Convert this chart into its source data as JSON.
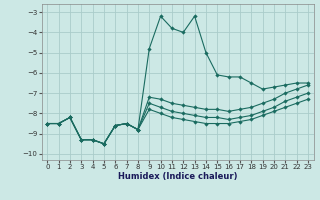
{
  "xlabel": "Humidex (Indice chaleur)",
  "background_color": "#cce8e5",
  "grid_color": "#aaccca",
  "line_color": "#1a6b60",
  "xlim": [
    -0.5,
    23.5
  ],
  "ylim": [
    -10.3,
    -2.6
  ],
  "xticks": [
    0,
    1,
    2,
    3,
    4,
    5,
    6,
    7,
    8,
    9,
    10,
    11,
    12,
    13,
    14,
    15,
    16,
    17,
    18,
    19,
    20,
    21,
    22,
    23
  ],
  "yticks": [
    -10,
    -9,
    -8,
    -7,
    -6,
    -5,
    -4,
    -3
  ],
  "series": [
    {
      "x": [
        0,
        1,
        2,
        3,
        4,
        5,
        6,
        7,
        8,
        9,
        10,
        11,
        12,
        13,
        14,
        15,
        16,
        17,
        18,
        19,
        20,
        21,
        22,
        23
      ],
      "y": [
        -8.5,
        -8.5,
        -8.2,
        -9.3,
        -9.3,
        -9.5,
        -8.6,
        -8.5,
        -8.8,
        -4.8,
        -3.2,
        -3.8,
        -4.0,
        -3.2,
        -5.0,
        -6.1,
        -6.2,
        -6.2,
        -6.5,
        -6.8,
        -6.7,
        -6.6,
        -6.5,
        -6.5
      ]
    },
    {
      "x": [
        0,
        1,
        2,
        3,
        4,
        5,
        6,
        7,
        8,
        9,
        10,
        11,
        12,
        13,
        14,
        15,
        16,
        17,
        18,
        19,
        20,
        21,
        22,
        23
      ],
      "y": [
        -8.5,
        -8.5,
        -8.2,
        -9.3,
        -9.3,
        -9.5,
        -8.6,
        -8.5,
        -8.8,
        -7.2,
        -7.3,
        -7.5,
        -7.6,
        -7.7,
        -7.8,
        -7.8,
        -7.9,
        -7.8,
        -7.7,
        -7.5,
        -7.3,
        -7.0,
        -6.8,
        -6.6
      ]
    },
    {
      "x": [
        0,
        1,
        2,
        3,
        4,
        5,
        6,
        7,
        8,
        9,
        10,
        11,
        12,
        13,
        14,
        15,
        16,
        17,
        18,
        19,
        20,
        21,
        22,
        23
      ],
      "y": [
        -8.5,
        -8.5,
        -8.2,
        -9.3,
        -9.3,
        -9.5,
        -8.6,
        -8.5,
        -8.8,
        -7.5,
        -7.7,
        -7.9,
        -8.0,
        -8.1,
        -8.2,
        -8.2,
        -8.3,
        -8.2,
        -8.1,
        -7.9,
        -7.7,
        -7.4,
        -7.2,
        -7.0
      ]
    },
    {
      "x": [
        0,
        1,
        2,
        3,
        4,
        5,
        6,
        7,
        8,
        9,
        10,
        11,
        12,
        13,
        14,
        15,
        16,
        17,
        18,
        19,
        20,
        21,
        22,
        23
      ],
      "y": [
        -8.5,
        -8.5,
        -8.2,
        -9.3,
        -9.3,
        -9.5,
        -8.6,
        -8.5,
        -8.8,
        -7.8,
        -8.0,
        -8.2,
        -8.3,
        -8.4,
        -8.5,
        -8.5,
        -8.5,
        -8.4,
        -8.3,
        -8.1,
        -7.9,
        -7.7,
        -7.5,
        -7.3
      ]
    }
  ]
}
